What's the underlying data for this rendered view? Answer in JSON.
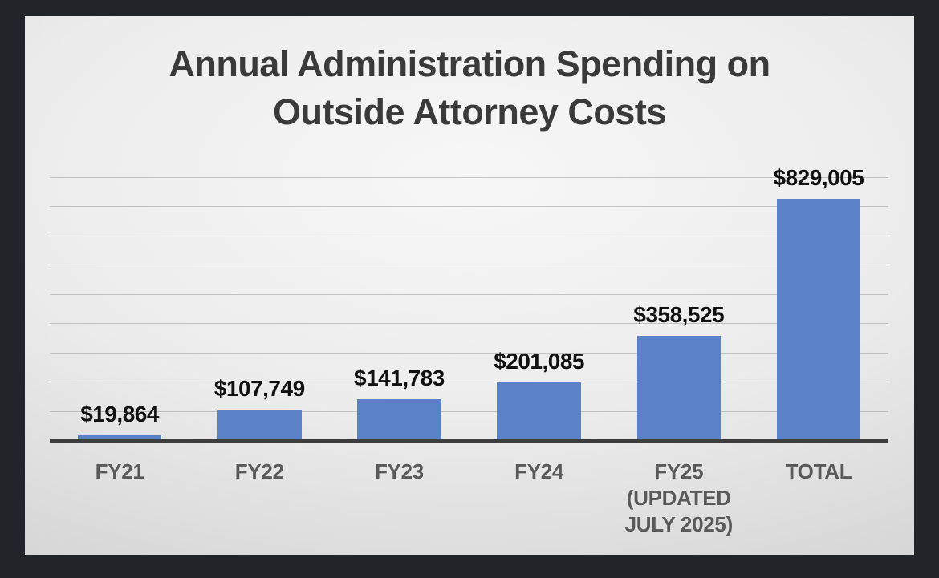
{
  "window": {
    "background": "#22242a"
  },
  "slide": {
    "background_center": "#f7f7f7",
    "background_edge": "#c6c6c6"
  },
  "chart_data": {
    "type": "bar",
    "title": "Annual Administration Spending on Outside Attorney Costs",
    "title_lines": [
      "Annual Administration Spending on",
      "Outside Attorney Costs"
    ],
    "categories": [
      "FY21",
      "FY22",
      "FY23",
      "FY24",
      "FY25 (UPDATED JULY 2025)",
      "TOTAL"
    ],
    "category_label_lines": [
      [
        "FY21"
      ],
      [
        "FY22"
      ],
      [
        "FY23"
      ],
      [
        "FY24"
      ],
      [
        "FY25",
        "(UPDATED",
        "JULY 2025)"
      ],
      [
        "TOTAL"
      ]
    ],
    "values": [
      19864,
      107749,
      141783,
      201085,
      358525,
      829005
    ],
    "value_labels": [
      "$19,864",
      "$107,749",
      "$141,783",
      "$201,085",
      "$358,525",
      "$829,005"
    ],
    "xlabel": "",
    "ylabel": "",
    "ylim": [
      0,
      900000
    ],
    "gridline_interval": 100000,
    "grid": true,
    "legend": false,
    "y_tick_labels_visible": false,
    "bar_color": "#5b82c9",
    "axis_line_color": "#3d3d3d",
    "gridline_color": "#9a9a9a",
    "title_color": "#3a3a3a",
    "value_label_color": "#111111",
    "category_label_color": "#595959"
  }
}
